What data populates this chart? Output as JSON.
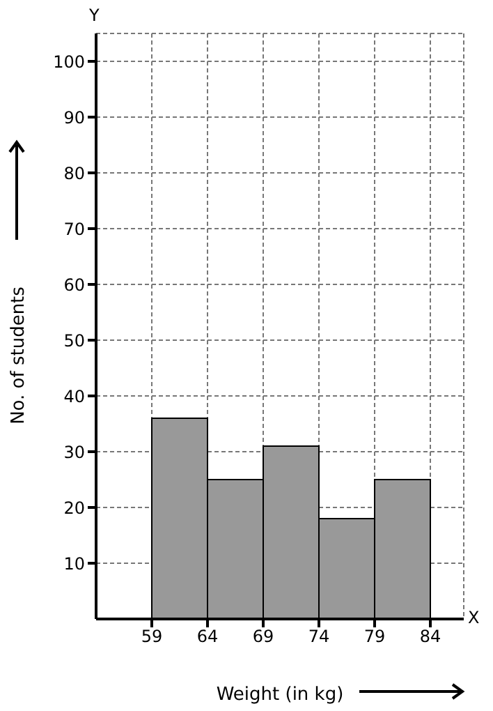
{
  "chart_data": {
    "type": "histogram",
    "xlabel": "Weight (in kg)",
    "ylabel": "No. of students",
    "bins": [
      59,
      64,
      69,
      74,
      79,
      84
    ],
    "values": [
      36,
      25,
      31,
      18,
      25
    ],
    "color": "#999999",
    "xlim": [
      54,
      87
    ],
    "xticks": [
      59,
      64,
      69,
      74,
      79,
      84
    ],
    "ylim": [
      0,
      105
    ],
    "yticks": [
      10,
      20,
      30,
      40,
      50,
      60,
      70,
      80,
      90,
      100
    ],
    "grid": true,
    "annotations": [
      "X",
      "Y"
    ]
  }
}
